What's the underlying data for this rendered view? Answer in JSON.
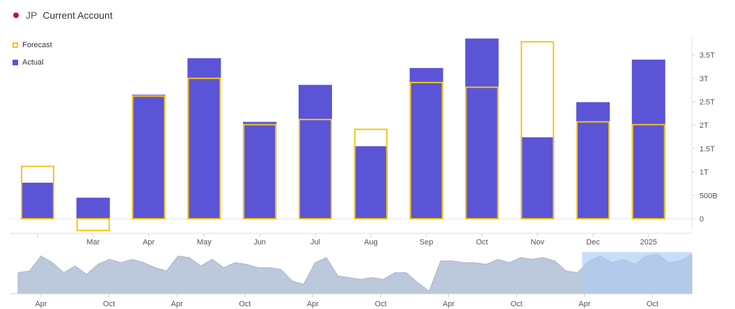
{
  "header": {
    "country_code": "JP",
    "title": "Current Account"
  },
  "legend": {
    "forecast_label": "Forecast",
    "actual_label": "Actual"
  },
  "colors": {
    "actual": "#5b54d6",
    "forecast": "#f5c518",
    "navigator_area": "#bcc8db",
    "navigator_selection": "#aecbf5",
    "flag": "#c8102e"
  },
  "chart_data": {
    "type": "bar",
    "title": "Current Account",
    "categories": [
      "",
      "Mar",
      "Apr",
      "May",
      "Jun",
      "Jul",
      "Aug",
      "Sep",
      "Oct",
      "Nov",
      "Dec",
      "2025"
    ],
    "series": [
      {
        "name": "Actual",
        "values": [
          0.77,
          0.45,
          2.65,
          3.43,
          2.07,
          2.86,
          1.55,
          3.22,
          3.85,
          1.74,
          2.49,
          3.4
        ]
      },
      {
        "name": "Forecast",
        "values": [
          1.12,
          -0.25,
          2.62,
          3.0,
          2.01,
          2.12,
          1.91,
          2.91,
          2.81,
          3.78,
          2.07,
          2.01
        ]
      }
    ],
    "y_ticks": [
      {
        "value": 0,
        "label": "0"
      },
      {
        "value": 0.5,
        "label": "500B"
      },
      {
        "value": 1,
        "label": "1T"
      },
      {
        "value": 1.5,
        "label": "1.5T"
      },
      {
        "value": 2,
        "label": "2T"
      },
      {
        "value": 2.5,
        "label": "2.5T"
      },
      {
        "value": 3,
        "label": "3T"
      },
      {
        "value": 3.5,
        "label": "3.5T"
      }
    ],
    "ylim": [
      -0.3,
      3.9
    ],
    "y_unit": "trillion",
    "navigator": {
      "x_labels": [
        "Apr",
        "Oct",
        "Apr",
        "Oct",
        "Apr",
        "Oct",
        "Apr",
        "Oct",
        "Apr",
        "Oct"
      ],
      "values": [
        0.55,
        0.6,
        1.05,
        0.85,
        0.55,
        0.75,
        0.5,
        0.8,
        0.95,
        0.85,
        0.95,
        0.85,
        0.7,
        0.6,
        1.05,
        1.0,
        0.75,
        0.95,
        0.7,
        0.85,
        0.8,
        0.7,
        0.7,
        0.65,
        0.3,
        0.2,
        0.85,
        1.0,
        0.45,
        0.4,
        0.35,
        0.4,
        0.35,
        0.55,
        0.55,
        0.25,
        0.0,
        0.9,
        0.9,
        0.85,
        0.85,
        0.8,
        0.95,
        0.85,
        1.0,
        0.95,
        1.0,
        0.9,
        0.6,
        0.55,
        0.9,
        1.05,
        0.85,
        0.95,
        0.8,
        1.05,
        1.1,
        0.85,
        0.9,
        1.1
      ],
      "selection_start_index": 50
    }
  }
}
